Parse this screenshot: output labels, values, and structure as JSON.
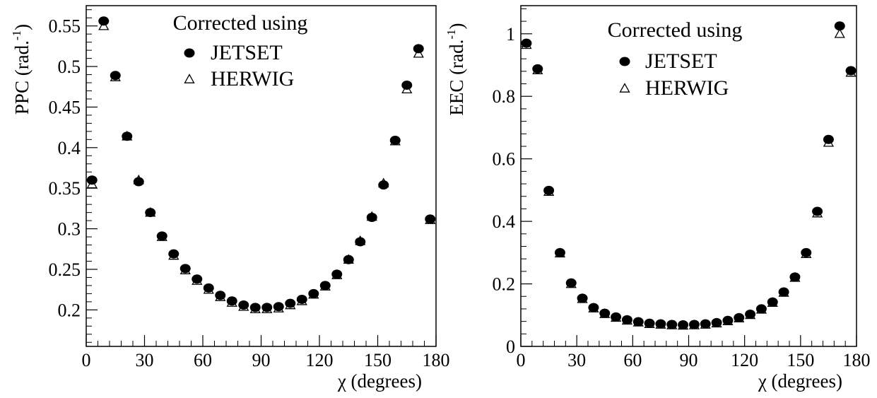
{
  "chart_data": [
    {
      "type": "scatter",
      "xlabel": "χ  (degrees)",
      "ylabel": "PPC  (rad.",
      "ylabel_sup": "-1",
      "ylabel_close": ")",
      "xlim": [
        0,
        180
      ],
      "ylim": [
        0.155,
        0.575
      ],
      "xticks": [
        0,
        30,
        60,
        90,
        120,
        150,
        180
      ],
      "yticks": [
        0.2,
        0.25,
        0.3,
        0.35,
        0.4,
        0.45,
        0.5,
        0.55
      ],
      "ytick_labels": [
        "0.2",
        "0.25",
        "0.3",
        "0.35",
        "0.4",
        "0.45",
        "0.5",
        "0.55"
      ],
      "grid": false,
      "legend": {
        "title": "Corrected using",
        "placement": "top-center",
        "entries": [
          "JETSET",
          "HERWIG"
        ]
      },
      "series": [
        {
          "name": "JETSET",
          "marker": "filled-circle",
          "x": [
            3,
            9,
            15,
            21,
            27,
            33,
            39,
            45,
            51,
            57,
            63,
            69,
            75,
            81,
            87,
            93,
            99,
            105,
            111,
            117,
            123,
            129,
            135,
            141,
            147,
            153,
            159,
            165,
            171,
            177
          ],
          "y": [
            0.36,
            0.556,
            0.489,
            0.414,
            0.358,
            0.32,
            0.291,
            0.269,
            0.251,
            0.238,
            0.227,
            0.218,
            0.211,
            0.206,
            0.203,
            0.203,
            0.204,
            0.208,
            0.213,
            0.22,
            0.23,
            0.244,
            0.262,
            0.284,
            0.314,
            0.354,
            0.409,
            0.477,
            0.522,
            0.312
          ]
        },
        {
          "name": "HERWIG",
          "marker": "open-triangle",
          "x": [
            3,
            9,
            15,
            21,
            27,
            33,
            39,
            45,
            51,
            57,
            63,
            69,
            75,
            81,
            87,
            93,
            99,
            105,
            111,
            117,
            123,
            129,
            135,
            141,
            147,
            153,
            159,
            165,
            171,
            177
          ],
          "y": [
            0.355,
            0.55,
            0.487,
            0.414,
            0.36,
            0.32,
            0.29,
            0.267,
            0.249,
            0.236,
            0.225,
            0.216,
            0.209,
            0.204,
            0.201,
            0.201,
            0.202,
            0.206,
            0.211,
            0.219,
            0.229,
            0.243,
            0.262,
            0.285,
            0.315,
            0.356,
            0.408,
            0.472,
            0.516,
            0.311
          ]
        }
      ]
    },
    {
      "type": "scatter",
      "xlabel": "χ  (degrees)",
      "ylabel": "EEC  (rad.",
      "ylabel_sup": "-1",
      "ylabel_close": ")",
      "xlim": [
        0,
        180
      ],
      "ylim": [
        0,
        1.09
      ],
      "xticks": [
        0,
        30,
        60,
        90,
        120,
        150,
        180
      ],
      "yticks": [
        0,
        0.2,
        0.4,
        0.6,
        0.8,
        1
      ],
      "ytick_labels": [
        "0",
        "0.2",
        "0.4",
        "0.6",
        "0.8",
        "1"
      ],
      "grid": false,
      "legend": {
        "title": "Corrected using",
        "placement": "top-center",
        "entries": [
          "JETSET",
          "HERWIG"
        ]
      },
      "series": [
        {
          "name": "JETSET",
          "marker": "filled-circle",
          "x": [
            3,
            9,
            15,
            21,
            27,
            33,
            39,
            45,
            51,
            57,
            63,
            69,
            75,
            81,
            87,
            93,
            99,
            105,
            111,
            117,
            123,
            129,
            135,
            141,
            147,
            153,
            159,
            165,
            171,
            177
          ],
          "y": [
            0.97,
            0.888,
            0.499,
            0.3,
            0.203,
            0.154,
            0.124,
            0.106,
            0.094,
            0.085,
            0.079,
            0.074,
            0.072,
            0.07,
            0.069,
            0.07,
            0.072,
            0.076,
            0.083,
            0.092,
            0.103,
            0.12,
            0.142,
            0.174,
            0.222,
            0.3,
            0.432,
            0.662,
            1.025,
            0.882
          ]
        },
        {
          "name": "HERWIG",
          "marker": "open-triangle",
          "x": [
            3,
            9,
            15,
            21,
            27,
            33,
            39,
            45,
            51,
            57,
            63,
            69,
            75,
            81,
            87,
            93,
            99,
            105,
            111,
            117,
            123,
            129,
            135,
            141,
            147,
            153,
            159,
            165,
            171,
            177
          ],
          "y": [
            0.965,
            0.884,
            0.495,
            0.298,
            0.2,
            0.152,
            0.122,
            0.104,
            0.092,
            0.083,
            0.077,
            0.072,
            0.07,
            0.068,
            0.067,
            0.068,
            0.07,
            0.074,
            0.081,
            0.09,
            0.101,
            0.118,
            0.14,
            0.172,
            0.22,
            0.296,
            0.426,
            0.652,
            1.0,
            0.876
          ]
        }
      ]
    }
  ],
  "colors": {
    "ink": "#000000",
    "background": "#ffffff"
  }
}
